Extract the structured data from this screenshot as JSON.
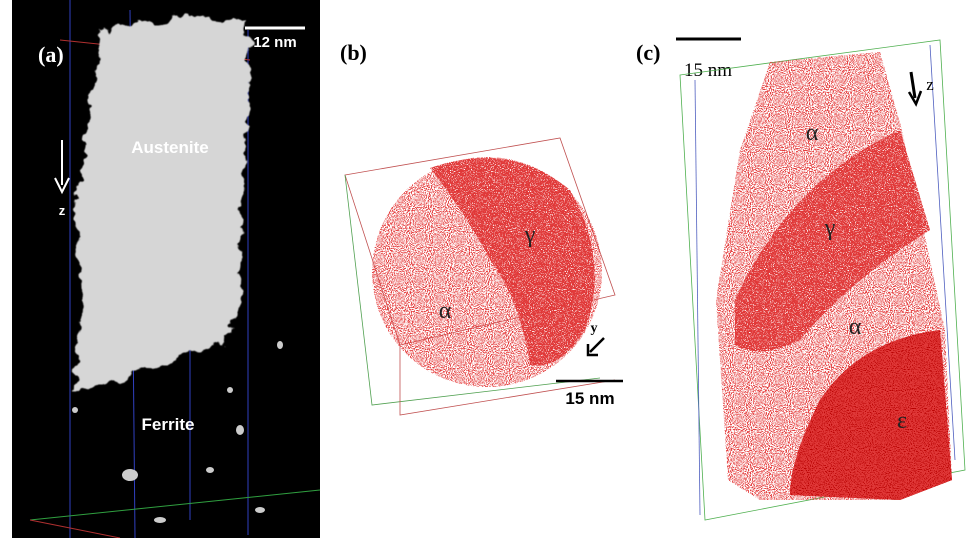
{
  "panels": [
    {
      "label": "(a)",
      "scale": "12 nm",
      "phase_top": "Austenite",
      "axis": "z",
      "phase_bottom": "Ferrite"
    },
    {
      "label": "(b)",
      "phase_1": "γ",
      "phase_2": "α",
      "axis": "y",
      "scale": "15 nm"
    },
    {
      "label": "(c)",
      "scale": "15 nm",
      "axis": "z",
      "phase_1": "α",
      "phase_2": "γ",
      "phase_3": "α",
      "phase_4": "ε"
    }
  ]
}
